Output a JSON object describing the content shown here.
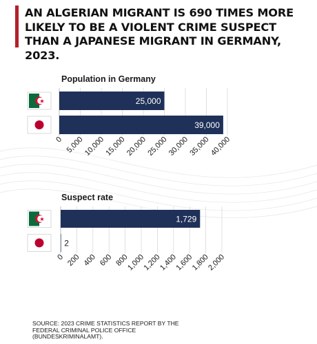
{
  "headline": "AN ALGERIAN MIGRANT IS 690 TIMES MORE LIKELY TO BE A VIOLENT CRIME SUSPECT THAN A JAPANESE MIGRANT IN GERMANY, 2023.",
  "source": "SOURCE: 2023 CRIME STATISTICS REPORT BY THE FEDERAL CRIMINAL POLICE OFFICE  (BUNDESKRIMINALAMT).",
  "colors": {
    "bar": "#1f3159",
    "accent": "#b3202a",
    "algeria_green": "#0a6b3c",
    "algeria_red": "#d21034",
    "japan_red": "#bc002d"
  },
  "chart_data": [
    {
      "type": "bar",
      "orientation": "horizontal",
      "title": "Population in Germany",
      "categories": [
        "Algeria",
        "Japan"
      ],
      "category_icons": [
        "algeria-flag-icon",
        "japan-flag-icon"
      ],
      "values": [
        25000,
        39000
      ],
      "value_labels": [
        "25,000",
        "39,000"
      ],
      "xlim": [
        0,
        40000
      ],
      "xticks": [
        "0",
        "5,000",
        "10,000",
        "15,000",
        "20,000",
        "25,000",
        "30,000",
        "35,000",
        "40,000"
      ],
      "grid": true
    },
    {
      "type": "bar",
      "orientation": "horizontal",
      "title": "Suspect rate",
      "categories": [
        "Algeria",
        "Japan"
      ],
      "category_icons": [
        "algeria-flag-icon",
        "japan-flag-icon"
      ],
      "values": [
        1729,
        2
      ],
      "value_labels": [
        "1,729",
        "2"
      ],
      "xlim": [
        0,
        2000
      ],
      "xticks": [
        "0",
        "200",
        "400",
        "600",
        "800",
        "1,000",
        "1,200",
        "1,400",
        "1,600",
        "1,800",
        "2,000"
      ],
      "grid": true
    }
  ]
}
